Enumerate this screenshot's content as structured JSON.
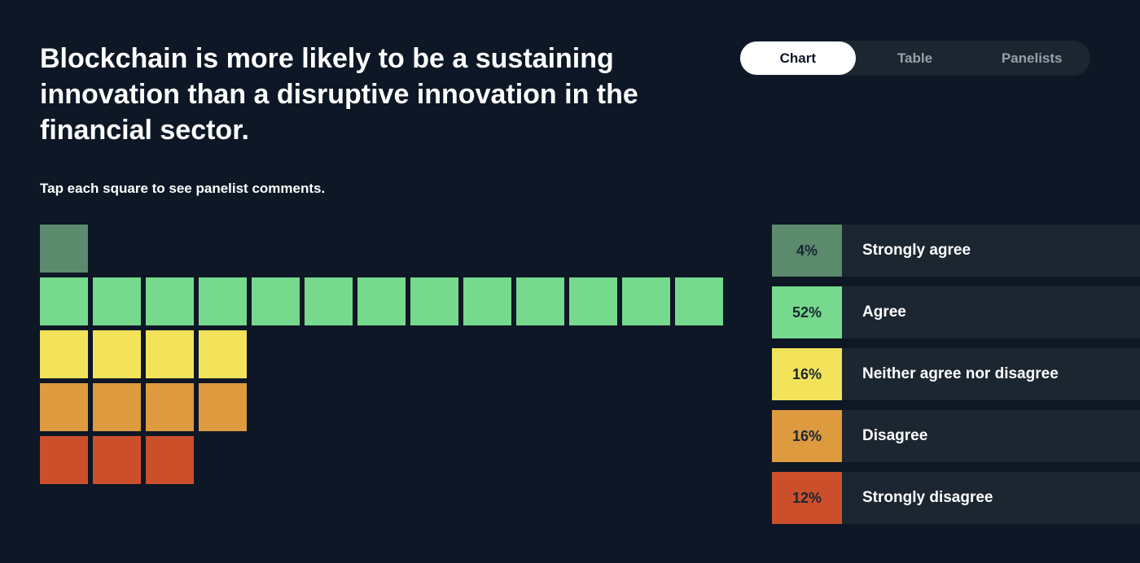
{
  "page": {
    "title": "Blockchain is more likely to be a sustaining innovation than a disruptive innovation in the financial sector.",
    "instruction": "Tap each square to see panelist comments."
  },
  "view_tabs": [
    {
      "label": "Chart",
      "active": true
    },
    {
      "label": "Table",
      "active": false
    },
    {
      "label": "Panelists",
      "active": false
    }
  ],
  "chart_data": {
    "type": "waffle",
    "unit": "panelist responses, one square per panelist",
    "categories": [
      {
        "label": "Strongly agree",
        "percent_label": "4%",
        "percent": 4,
        "count": 1,
        "color": "#5b8a6c"
      },
      {
        "label": "Agree",
        "percent_label": "52%",
        "percent": 52,
        "count": 13,
        "color": "#76d98d"
      },
      {
        "label": "Neither agree nor disagree",
        "percent_label": "16%",
        "percent": 16,
        "count": 4,
        "color": "#f2e35b"
      },
      {
        "label": "Disagree",
        "percent_label": "16%",
        "percent": 16,
        "count": 4,
        "color": "#de9a3e"
      },
      {
        "label": "Strongly disagree",
        "percent_label": "12%",
        "percent": 12,
        "count": 3,
        "color": "#cc4f2c"
      }
    ],
    "legend_placement": "right"
  }
}
